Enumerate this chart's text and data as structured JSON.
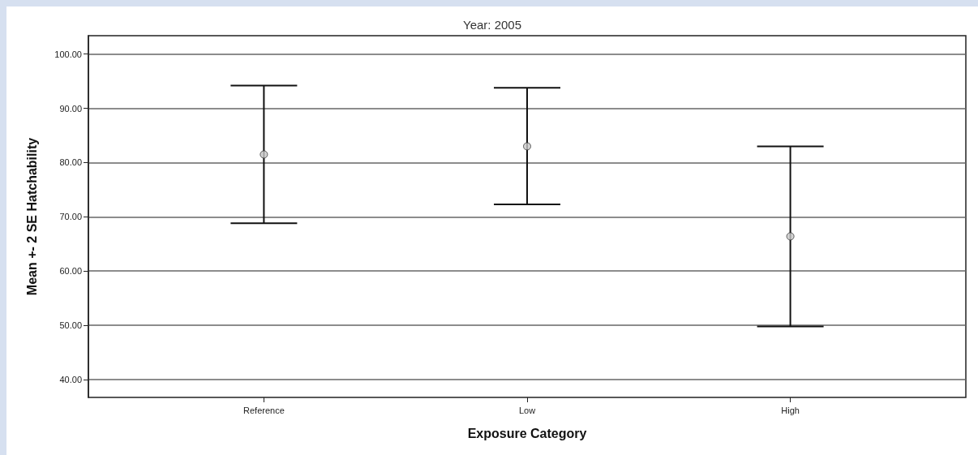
{
  "chart_data": {
    "type": "scatter",
    "title": "Year: 2005",
    "xlabel": "Exposure Category",
    "ylabel": "Mean +- 2 SE Hatchability",
    "categories": [
      "Reference",
      "Low",
      "High"
    ],
    "values": [
      81.5,
      83.0,
      66.4
    ],
    "errors": [
      [
        68.8,
        94.2
      ],
      [
        72.3,
        93.8
      ],
      [
        49.8,
        83.0
      ]
    ],
    "color": "#c8c8c8",
    "marker": "circle",
    "grid": "y",
    "ylim": [
      36.7,
      103.4
    ],
    "yticks": [
      {
        "value": 40,
        "label": "40.00"
      },
      {
        "value": 50,
        "label": "50.00"
      },
      {
        "value": 60,
        "label": "60.00"
      },
      {
        "value": 70,
        "label": "70.00"
      },
      {
        "value": 80,
        "label": "80.00"
      },
      {
        "value": 90,
        "label": "90.00"
      },
      {
        "value": 100,
        "label": "100.00"
      }
    ]
  }
}
